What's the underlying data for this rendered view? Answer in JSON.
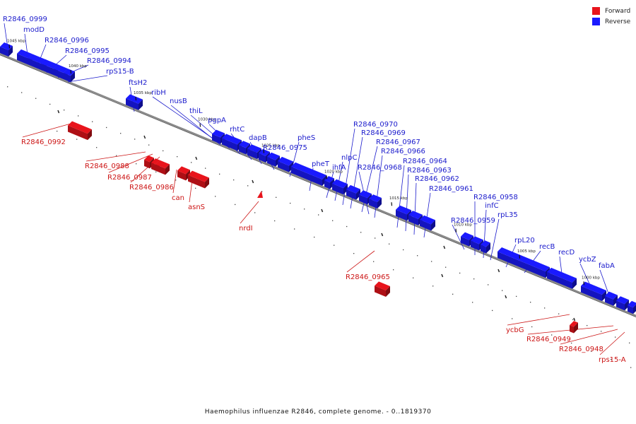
{
  "caption": "Haemophilus influenzae R2846, complete genome. - 0..1819370",
  "legend": [
    {
      "label": "Forward",
      "color": "#e8141c"
    },
    {
      "label": "Reverse",
      "color": "#1a1aff"
    }
  ],
  "colors": {
    "forward": "#e8141c",
    "reverse": "#1a1aff",
    "axis": "#777777"
  },
  "ticks": [
    "1045 kbp",
    "1040 kbp",
    "1035 kbp",
    "1030 kbp",
    "1025 kbp",
    "1020 kbp",
    "1015 kbp",
    "1010 kbp",
    "1005 kbp",
    "1000 kbp"
  ],
  "reverse_genes": [
    "R2846_0999",
    "modD",
    "R2846_0996",
    "R2846_0995",
    "R2846_0994",
    "rpS15-B",
    "ftsH2",
    "ribH",
    "nusB",
    "thiL",
    "pgpA",
    "rhtC",
    "dapB",
    "R2846_0975",
    "pheS",
    "pheT",
    "ihfA",
    "nlpC",
    "R2846_0970",
    "R2846_0969",
    "R2846_0968",
    "R2846_0967",
    "R2846_0966",
    "R2846_0964",
    "R2846_0963",
    "R2846_0962",
    "R2846_0961",
    "R2846_0959",
    "R2846_0958",
    "infC",
    "rpL35",
    "rpL20",
    "recB",
    "recD",
    "ycbZ",
    "fabA"
  ],
  "forward_genes": [
    "R2846_0992",
    "R2846_0988",
    "R2846_0987",
    "R2846_0986",
    "can",
    "asnS",
    "nrdI",
    "R2846_0965",
    "ycbG",
    "R2846_0949",
    "R2846_0948",
    "rps15-A"
  ]
}
